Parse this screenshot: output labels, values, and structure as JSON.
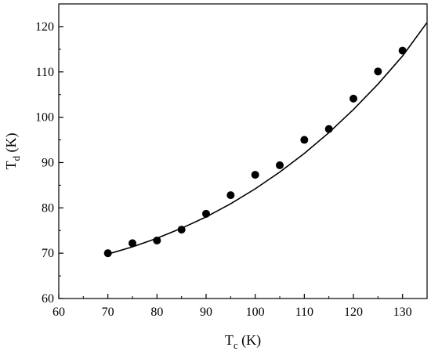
{
  "chart_data": {
    "type": "scatter",
    "title": "",
    "xlabel_main": "T",
    "xlabel_sub": "c",
    "xlabel_unit": " (K)",
    "ylabel_main": "T",
    "ylabel_sub": "d",
    "ylabel_unit": " (K)",
    "xlim": [
      60,
      135
    ],
    "ylim": [
      60,
      125
    ],
    "xticks": [
      60,
      70,
      80,
      90,
      100,
      110,
      120,
      130
    ],
    "yticks": [
      60,
      70,
      80,
      90,
      100,
      110,
      120
    ],
    "grid": false,
    "series": [
      {
        "type": "scatter",
        "x": [
          70,
          75,
          80,
          85,
          90,
          95,
          100,
          105,
          110,
          115,
          120,
          125,
          130
        ],
        "y": [
          70.0,
          72.2,
          72.8,
          75.2,
          78.7,
          82.8,
          87.3,
          89.4,
          95.0,
          97.4,
          104.1,
          110.1,
          114.7
        ]
      },
      {
        "type": "line",
        "x": [
          70,
          75,
          80,
          85,
          90,
          95,
          100,
          105,
          110,
          115,
          120,
          125,
          130,
          135
        ],
        "y": [
          69.8,
          71.4,
          73.3,
          75.5,
          78.0,
          80.9,
          84.2,
          87.9,
          92.0,
          96.6,
          101.7,
          107.3,
          113.5,
          120.9
        ]
      }
    ]
  }
}
